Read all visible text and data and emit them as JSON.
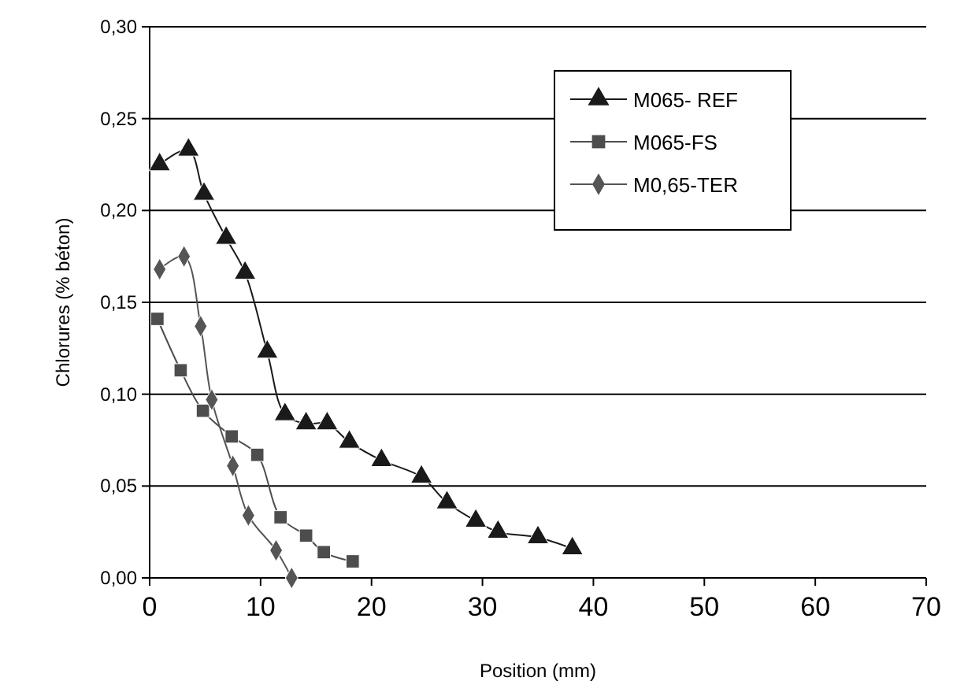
{
  "chart_data": {
    "type": "line",
    "xlabel": "Position (mm)",
    "ylabel": "Chlorures (% béton)",
    "xlim": [
      0,
      70
    ],
    "xticks": [
      0,
      10,
      20,
      30,
      40,
      50,
      60,
      70
    ],
    "ylim": [
      0,
      0.3
    ],
    "yticks": [
      {
        "value": 0,
        "label": "0,00"
      },
      {
        "value": 0.05,
        "label": "0,05"
      },
      {
        "value": 0.1,
        "label": "0,10"
      },
      {
        "value": 0.15,
        "label": "0,15"
      },
      {
        "value": 0.2,
        "label": "0,20"
      },
      {
        "value": 0.25,
        "label": "0,25"
      },
      {
        "value": 0.3,
        "label": "0,30"
      }
    ],
    "grid": "y",
    "legend": "top right",
    "line_style": "solid",
    "series": [
      {
        "name": "M065- REF",
        "color": "#1a1a1a",
        "marker": "triangle",
        "x": [
          0.9,
          3.5,
          4.9,
          6.9,
          8.6,
          10.6,
          12.2,
          14.1,
          16.0,
          18.0,
          20.9,
          24.5,
          26.8,
          29.4,
          31.4,
          35.0,
          38.1
        ],
        "values": [
          0.225,
          0.233,
          0.209,
          0.185,
          0.166,
          0.123,
          0.089,
          0.084,
          0.084,
          0.074,
          0.064,
          0.055,
          0.041,
          0.031,
          0.025,
          0.022,
          0.016
        ]
      },
      {
        "name": "M065-FS",
        "color": "#4d4d4d",
        "marker": "square",
        "x": [
          0.7,
          2.8,
          4.8,
          7.4,
          9.7,
          11.8,
          14.1,
          15.7,
          18.3
        ],
        "values": [
          0.141,
          0.113,
          0.091,
          0.077,
          0.067,
          0.033,
          0.023,
          0.014,
          0.009
        ]
      },
      {
        "name": "M0,65-TER",
        "color": "#555555",
        "marker": "diamond",
        "x": [
          0.9,
          3.1,
          4.6,
          5.6,
          7.5,
          8.9,
          11.4,
          12.8
        ],
        "values": [
          0.168,
          0.175,
          0.137,
          0.097,
          0.061,
          0.034,
          0.015,
          0.0
        ]
      }
    ]
  }
}
